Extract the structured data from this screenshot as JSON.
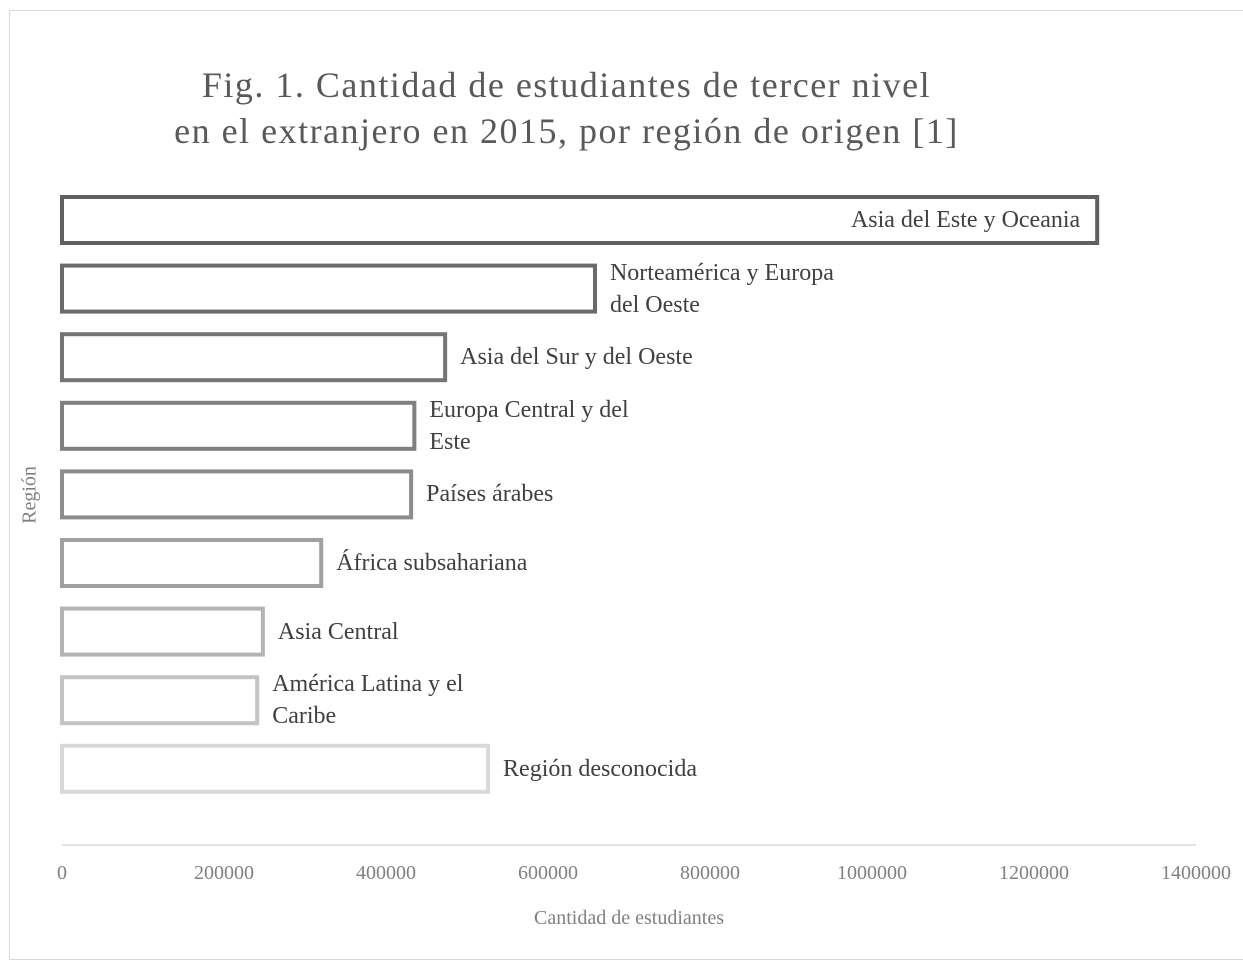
{
  "chart_data": {
    "type": "barh",
    "title": "Fig. 1. Cantidad de estudiantes de tercer nivel\nen el extranjero en 2015, por región de origen [1]",
    "x_label": "Cantidad de estudiantes",
    "y_label": "Región",
    "categories": [
      "Asia del Este y Oceania",
      "Norteamérica y Europa del Oeste",
      "Asia del Sur y del Oeste",
      "Europa Central y del Este",
      "Países árabes",
      "África subsahariana",
      "Asia Central",
      "América Latina y el Caribe",
      "Región desconocida"
    ],
    "values": [
      1278000,
      658000,
      473000,
      435000,
      431000,
      320000,
      248000,
      241000,
      526000
    ],
    "colors": [
      "#606060",
      "#6a6a6a",
      "#757575",
      "#808080",
      "#8c8c8c",
      "#a0a0a0",
      "#b4b4b4",
      "#c4c4c4",
      "#d9d9d9"
    ],
    "xlim": [
      0,
      1400000
    ],
    "xticks": [
      0,
      200000,
      400000,
      600000,
      800000,
      1000000,
      1200000,
      1400000
    ]
  }
}
